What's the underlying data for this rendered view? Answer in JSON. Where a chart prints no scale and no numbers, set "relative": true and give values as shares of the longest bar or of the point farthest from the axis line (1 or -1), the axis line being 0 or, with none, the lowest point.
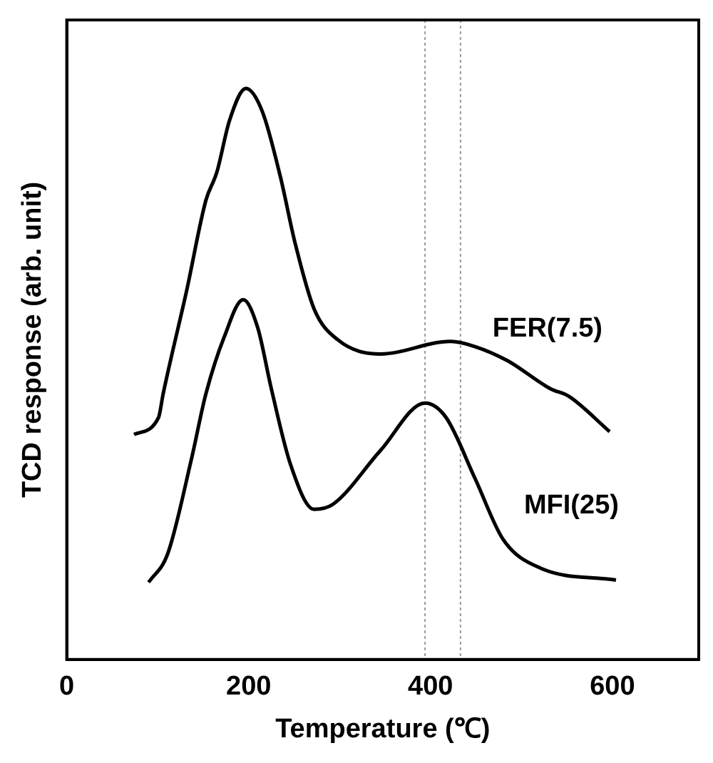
{
  "chart_data": {
    "type": "line",
    "xlabel": "Temperature (℃)",
    "ylabel": "TCD response (arb. unit)",
    "relative": true,
    "xlim": [
      0,
      695
    ],
    "xticks": [
      0,
      200,
      400,
      600
    ],
    "grid": false,
    "legend": false,
    "marker": "none",
    "line_style": "solid",
    "series": [
      {
        "name": "FER(7.5)",
        "color": "#000000",
        "x": [
          74,
          101,
          106,
          132,
          153,
          165,
          179,
          197,
          215,
          235,
          251,
          272,
          298,
          345,
          422,
          449,
          485,
          532,
          552,
          597
        ],
        "values": [
          0.394,
          0.424,
          0.465,
          0.647,
          0.804,
          0.853,
          0.944,
          1.0,
          0.96,
          0.845,
          0.73,
          0.614,
          0.56,
          0.535,
          0.557,
          0.548,
          0.523,
          0.474,
          0.461,
          0.399
        ]
      },
      {
        "name": "MFI(25)",
        "color": "#000000",
        "x": [
          90,
          111,
          137,
          153,
          173,
          194,
          210,
          225,
          246,
          272,
          293,
          345,
          394,
          417,
          449,
          480,
          521,
          604
        ],
        "values": [
          0.135,
          0.185,
          0.35,
          0.465,
          0.564,
          0.63,
          0.581,
          0.474,
          0.342,
          0.263,
          0.272,
          0.366,
          0.449,
          0.424,
          0.317,
          0.21,
          0.16,
          0.139
        ]
      }
    ],
    "ref_lines": [
      {
        "axis": "x",
        "value": 394,
        "color": "#999999",
        "line_style": "dotted"
      },
      {
        "axis": "x",
        "value": 433,
        "color": "#999999",
        "line_style": "dotted"
      }
    ]
  }
}
